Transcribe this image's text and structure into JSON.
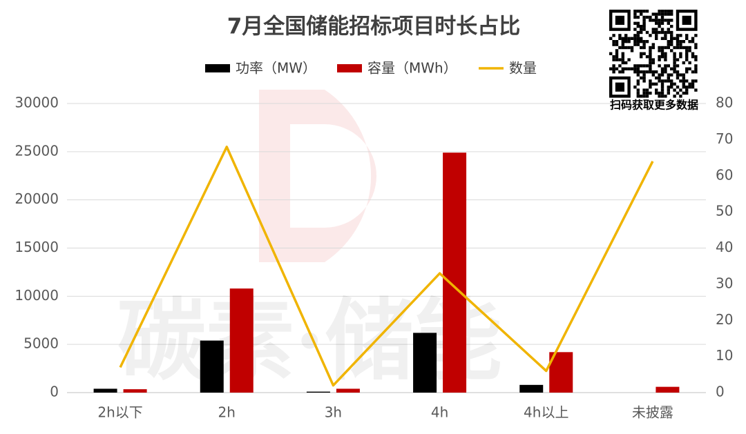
{
  "chart_data": {
    "type": "bar-line",
    "title": "7月全国储能招标项目时长占比",
    "watermark": "碳素·储能",
    "qr_caption": "扫码获取更多数据",
    "categories": [
      "2h以下",
      "2h",
      "3h",
      "4h",
      "4h以上",
      "未披露"
    ],
    "series": [
      {
        "name": "功率（MW）",
        "type": "bar",
        "color": "#000000",
        "values": [
          400,
          5400,
          100,
          6200,
          800,
          0
        ]
      },
      {
        "name": "容量（MWh）",
        "type": "bar",
        "color": "#c00000",
        "values": [
          350,
          10800,
          400,
          24900,
          4200,
          600
        ]
      },
      {
        "name": "数量",
        "type": "line",
        "color": "#f0b400",
        "axis": "y2",
        "values": [
          7,
          68,
          2,
          33,
          6,
          64
        ]
      }
    ],
    "ylim": [
      0,
      30000
    ],
    "yticks": [
      0,
      5000,
      10000,
      15000,
      20000,
      25000,
      30000
    ],
    "y2lim": [
      0,
      80
    ],
    "y2ticks": [
      0,
      10,
      20,
      30,
      40,
      50,
      60,
      70,
      80
    ],
    "grid": true,
    "legend": "top"
  }
}
